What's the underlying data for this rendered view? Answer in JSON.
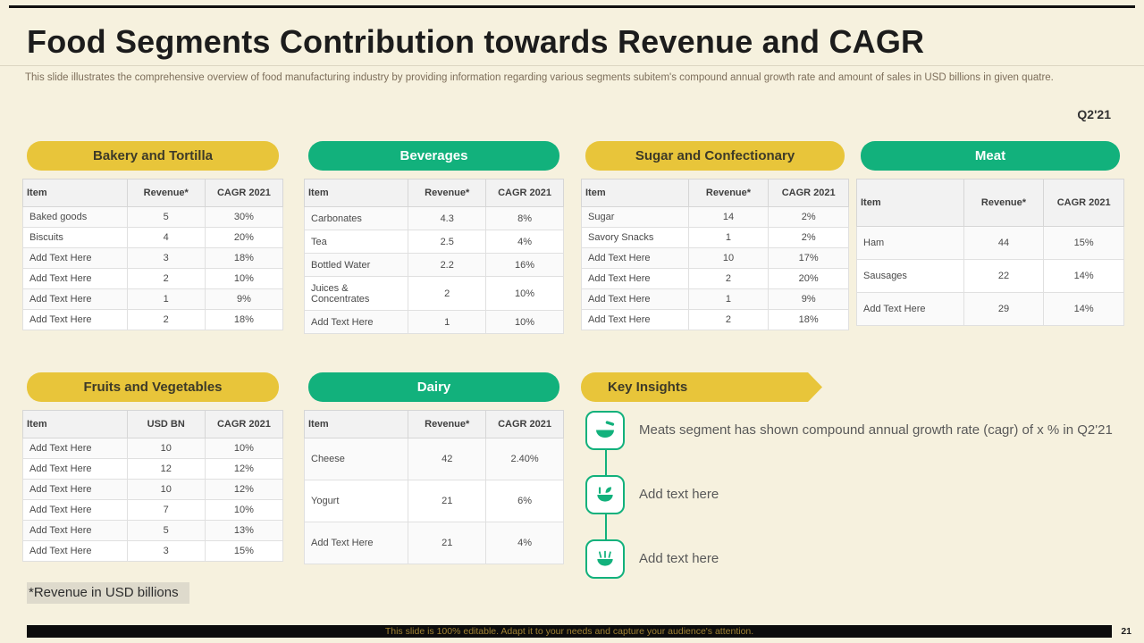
{
  "slide": {
    "title": "Food Segments Contribution towards Revenue and CAGR",
    "description": "This slide illustrates the comprehensive overview of food manufacturing industry by providing information regarding various segments subitem's compound annual growth rate and amount of sales in USD billions in given quatre.",
    "quarter_label": "Q2'21",
    "footnote": "*Revenue in USD billions",
    "footer_text": "This slide is 100% editable. Adapt it to your needs and capture your audience's attention.",
    "page_number": "21"
  },
  "colors": {
    "background": "#F6F1DE",
    "yellow": "#E8C53A",
    "green": "#12B17C",
    "footer_text": "#A08233"
  },
  "tables": {
    "bakery": {
      "id": "bakery-and-tortilla",
      "title": "Bakery and Tortilla",
      "style": "yellow",
      "columns": [
        "Item",
        "Revenue*",
        "CAGR 2021"
      ],
      "rows": [
        [
          "Baked goods",
          "5",
          "30%"
        ],
        [
          "Biscuits",
          "4",
          "20%"
        ],
        [
          "Add Text Here",
          "3",
          "18%"
        ],
        [
          "Add Text Here",
          "2",
          "10%"
        ],
        [
          "Add Text Here",
          "1",
          "9%"
        ],
        [
          "Add Text Here",
          "2",
          "18%"
        ]
      ]
    },
    "beverages": {
      "id": "beverages",
      "title": "Beverages",
      "style": "green",
      "columns": [
        "Item",
        "Revenue*",
        "CAGR 2021"
      ],
      "rows": [
        [
          "Carbonates",
          "4.3",
          "8%"
        ],
        [
          "Tea",
          "2.5",
          "4%"
        ],
        [
          "Bottled Water",
          "2.2",
          "16%"
        ],
        [
          "Juices & Concentrates",
          "2",
          "10%"
        ],
        [
          "Add Text Here",
          "1",
          "10%"
        ]
      ]
    },
    "sugar": {
      "id": "sugar-and-confectionary",
      "title": "Sugar and Confectionary",
      "style": "yellow",
      "columns": [
        "Item",
        "Revenue*",
        "CAGR 2021"
      ],
      "rows": [
        [
          "Sugar",
          "14",
          "2%"
        ],
        [
          "Savory Snacks",
          "1",
          "2%"
        ],
        [
          "Add Text Here",
          "10",
          "17%"
        ],
        [
          "Add Text Here",
          "2",
          "20%"
        ],
        [
          "Add Text Here",
          "1",
          "9%"
        ],
        [
          "Add Text Here",
          "2",
          "18%"
        ]
      ]
    },
    "meat": {
      "id": "meat",
      "title": "Meat",
      "style": "green",
      "columns": [
        "Item",
        "Revenue*",
        "CAGR 2021"
      ],
      "rows": [
        [
          "Ham",
          "44",
          "15%"
        ],
        [
          "Sausages",
          "22",
          "14%"
        ],
        [
          "Add Text Here",
          "29",
          "14%"
        ]
      ]
    },
    "fruits": {
      "id": "fruits-and-vegetables",
      "title": "Fruits and Vegetables",
      "style": "yellow",
      "columns": [
        "Item",
        "USD BN",
        "CAGR 2021"
      ],
      "rows": [
        [
          "Add Text Here",
          "10",
          "10%"
        ],
        [
          "Add Text Here",
          "12",
          "12%"
        ],
        [
          "Add Text Here",
          "10",
          "12%"
        ],
        [
          "Add Text Here",
          "7",
          "10%"
        ],
        [
          "Add Text Here",
          "5",
          "13%"
        ],
        [
          "Add Text Here",
          "3",
          "15%"
        ]
      ]
    },
    "dairy": {
      "id": "dairy",
      "title": "Dairy",
      "style": "green",
      "columns": [
        "Item",
        "Revenue*",
        "CAGR 2021"
      ],
      "rows": [
        [
          "Cheese",
          "42",
          "2.40%"
        ],
        [
          "Yogurt",
          "21",
          "6%"
        ],
        [
          "Add Text Here",
          "21",
          "4%"
        ]
      ]
    }
  },
  "key_insights": {
    "title": "Key Insights",
    "items": [
      {
        "icon": "soup-bowl-icon",
        "text": "Meats segment has shown compound annual growth rate (cagr) of x % in Q2'21"
      },
      {
        "icon": "salad-bowl-icon",
        "text": "Add text here"
      },
      {
        "icon": "noodle-bowl-icon",
        "text": "Add text here"
      }
    ]
  }
}
